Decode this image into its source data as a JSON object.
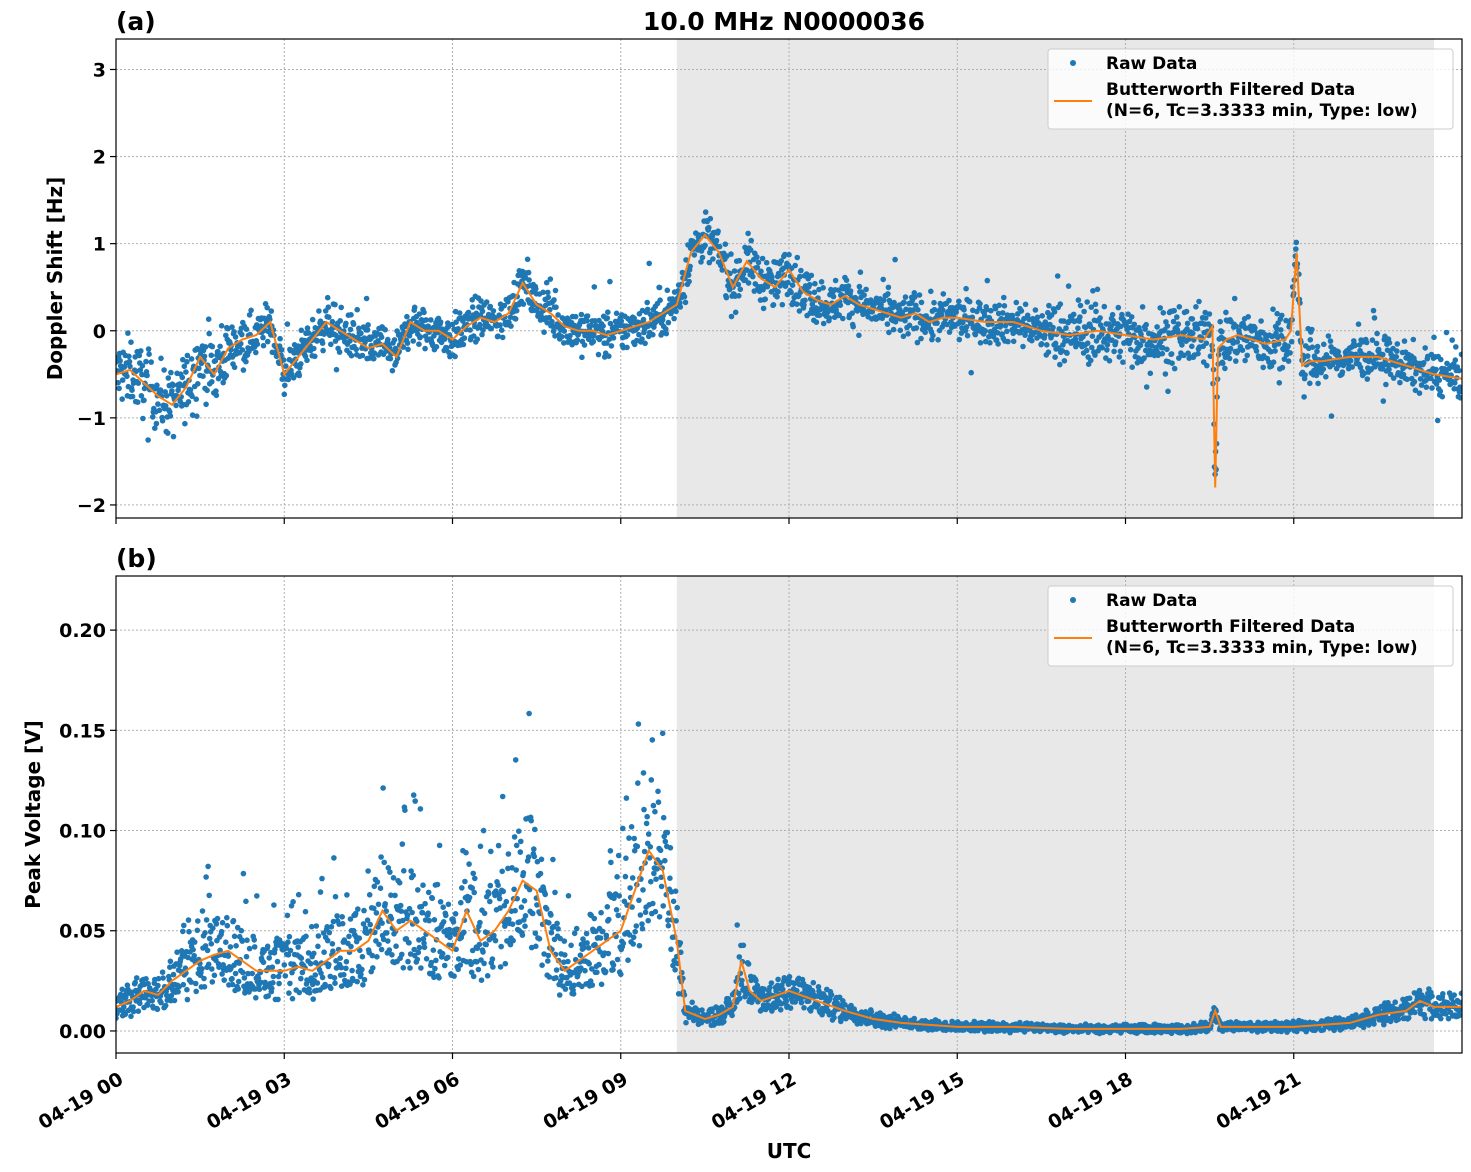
{
  "chart_data": {
    "type": "scatter",
    "title": "10.0 MHz N0000036",
    "xlabel": "UTC",
    "x_ticks": [
      "04-19 00",
      "04-19 03",
      "04-19 06",
      "04-19 09",
      "04-19 12",
      "04-19 15",
      "04-19 18",
      "04-19 21"
    ],
    "x_range_hours": [
      0,
      24
    ],
    "night_shading_hours": [
      10.0,
      23.5
    ],
    "colors": {
      "raw": "#1f77b4",
      "filtered": "#ff7f0e",
      "shade": "#e8e8e8"
    },
    "legend": {
      "placement": "top-right",
      "raw": "Raw Data",
      "filtered_line1": "Butterworth Filtered Data",
      "filtered_line2": "(N=6, Tc=3.3333 min, Type: low)"
    },
    "panels": [
      {
        "label": "(a)",
        "ylabel": "Doppler Shift [Hz]",
        "ylim": [
          -2.15,
          3.35
        ],
        "yticks": [
          -2,
          -1,
          0,
          1,
          2,
          3
        ],
        "ytick_labels": [
          "−2",
          "−1",
          "0",
          "1",
          "2",
          "3"
        ],
        "filtered": {
          "hours": [
            0,
            0.25,
            0.5,
            0.75,
            1.0,
            1.25,
            1.5,
            1.75,
            2.0,
            2.25,
            2.5,
            2.75,
            3.0,
            3.25,
            3.5,
            3.75,
            4.0,
            4.25,
            4.5,
            4.75,
            5.0,
            5.25,
            5.5,
            5.75,
            6.0,
            6.25,
            6.5,
            6.75,
            7.0,
            7.25,
            7.5,
            7.75,
            8.0,
            8.25,
            8.5,
            8.75,
            9.0,
            9.25,
            9.5,
            9.75,
            10.0,
            10.25,
            10.5,
            10.75,
            11.0,
            11.25,
            11.5,
            11.75,
            12.0,
            12.25,
            12.5,
            12.75,
            13.0,
            13.25,
            13.5,
            13.75,
            14.0,
            14.25,
            14.5,
            14.75,
            15.0,
            15.5,
            16.0,
            16.5,
            17.0,
            17.5,
            18.0,
            18.5,
            19.0,
            19.4,
            19.55,
            19.6,
            19.65,
            19.8,
            20.0,
            20.5,
            20.85,
            20.95,
            21.05,
            21.15,
            21.3,
            21.5,
            22.0,
            22.5,
            23.0,
            23.5,
            24.0
          ],
          "values": [
            -0.5,
            -0.45,
            -0.6,
            -0.75,
            -0.85,
            -0.65,
            -0.3,
            -0.5,
            -0.2,
            -0.1,
            -0.05,
            0.1,
            -0.5,
            -0.3,
            -0.1,
            0.1,
            0.0,
            -0.1,
            -0.2,
            -0.15,
            -0.3,
            0.1,
            0.0,
            0.0,
            -0.1,
            0.05,
            0.15,
            0.1,
            0.2,
            0.55,
            0.3,
            0.2,
            0.05,
            0.0,
            0.0,
            -0.05,
            0.0,
            0.05,
            0.1,
            0.2,
            0.3,
            0.9,
            1.1,
            0.9,
            0.5,
            0.8,
            0.6,
            0.5,
            0.7,
            0.45,
            0.35,
            0.3,
            0.4,
            0.3,
            0.25,
            0.2,
            0.15,
            0.2,
            0.1,
            0.15,
            0.15,
            0.1,
            0.1,
            0.0,
            -0.05,
            0.0,
            -0.05,
            -0.1,
            -0.05,
            -0.1,
            0.05,
            -1.8,
            -0.2,
            -0.1,
            -0.05,
            -0.15,
            -0.1,
            0.0,
            0.9,
            -0.4,
            -0.35,
            -0.35,
            -0.3,
            -0.3,
            -0.4,
            -0.5,
            -0.55
          ]
        }
      },
      {
        "label": "(b)",
        "ylabel": "Peak Voltage [V]",
        "ylim": [
          -0.011,
          0.227
        ],
        "yticks": [
          0.0,
          0.05,
          0.1,
          0.15,
          0.2
        ],
        "ytick_labels": [
          "0.00",
          "0.05",
          "0.10",
          "0.15",
          "0.20"
        ],
        "filtered": {
          "hours": [
            0,
            0.25,
            0.5,
            0.75,
            1.0,
            1.25,
            1.5,
            1.75,
            2.0,
            2.25,
            2.5,
            2.75,
            3.0,
            3.25,
            3.5,
            3.75,
            4.0,
            4.25,
            4.5,
            4.75,
            5.0,
            5.25,
            5.5,
            5.75,
            6.0,
            6.25,
            6.5,
            6.75,
            7.0,
            7.25,
            7.5,
            7.75,
            8.0,
            8.25,
            8.5,
            8.75,
            9.0,
            9.25,
            9.5,
            9.75,
            10.0,
            10.15,
            10.5,
            10.75,
            11.0,
            11.15,
            11.3,
            11.5,
            12.0,
            12.5,
            13.0,
            13.5,
            14.0,
            14.5,
            15.0,
            16.0,
            17.0,
            18.0,
            19.0,
            19.5,
            19.6,
            19.7,
            20.0,
            21.0,
            22.0,
            22.5,
            23.0,
            23.25,
            23.5,
            24.0
          ],
          "values": [
            0.012,
            0.015,
            0.02,
            0.018,
            0.025,
            0.03,
            0.035,
            0.038,
            0.04,
            0.035,
            0.03,
            0.03,
            0.03,
            0.032,
            0.03,
            0.035,
            0.04,
            0.04,
            0.045,
            0.06,
            0.05,
            0.055,
            0.05,
            0.045,
            0.04,
            0.06,
            0.045,
            0.05,
            0.06,
            0.075,
            0.07,
            0.04,
            0.03,
            0.035,
            0.04,
            0.045,
            0.05,
            0.07,
            0.09,
            0.08,
            0.045,
            0.01,
            0.006,
            0.008,
            0.012,
            0.035,
            0.02,
            0.015,
            0.02,
            0.015,
            0.01,
            0.006,
            0.004,
            0.003,
            0.002,
            0.002,
            0.001,
            0.001,
            0.001,
            0.002,
            0.01,
            0.002,
            0.002,
            0.002,
            0.004,
            0.008,
            0.01,
            0.015,
            0.012,
            0.012
          ]
        }
      }
    ]
  }
}
